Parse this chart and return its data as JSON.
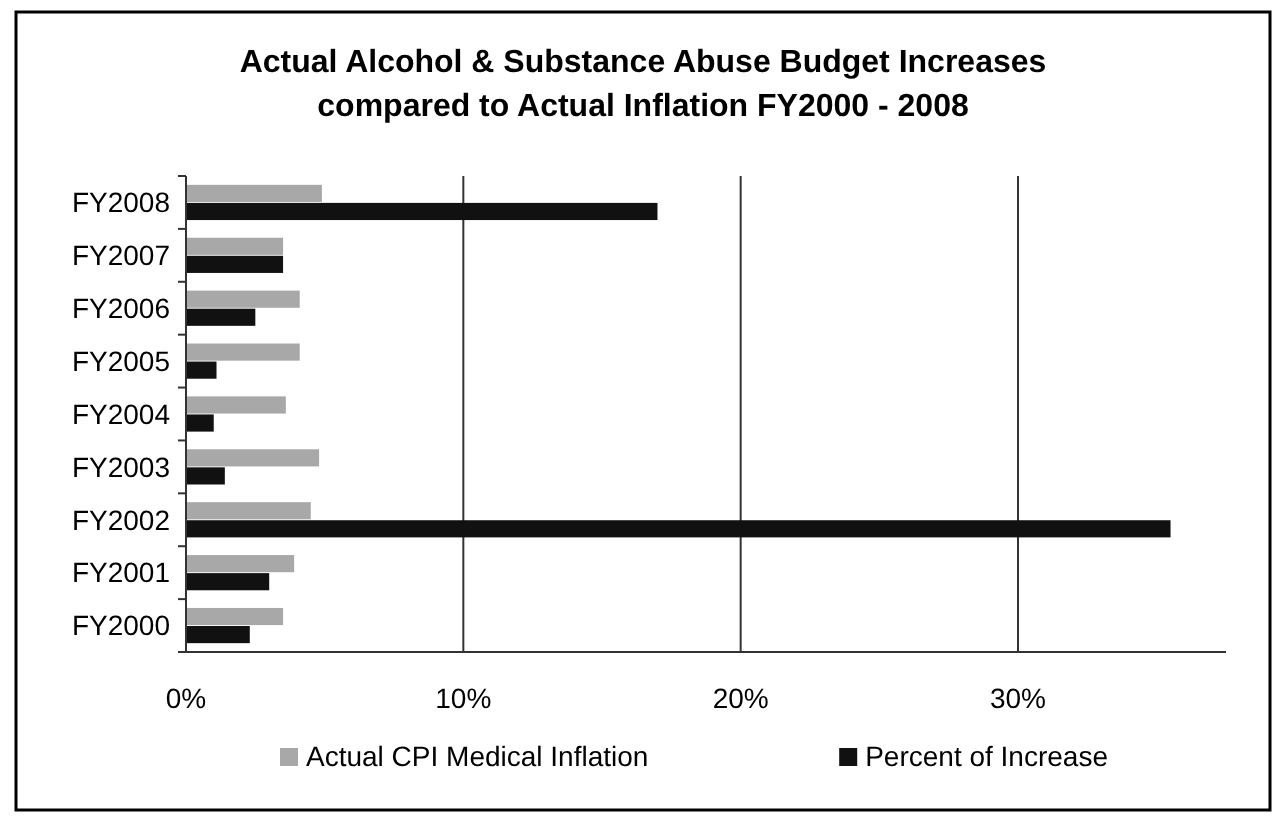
{
  "chart_data": {
    "type": "bar",
    "orientation": "horizontal",
    "title": "Actual Alcohol & Substance Abuse Budget Increases compared to Actual Inflation FY2000 - 2008",
    "categories": [
      "FY2008",
      "FY2007",
      "FY2006",
      "FY2005",
      "FY2004",
      "FY2003",
      "FY2002",
      "FY2001",
      "FY2000"
    ],
    "series": [
      {
        "name": "Actual CPI Medical Inflation",
        "color": "#a8a8a8",
        "values": [
          4.9,
          3.5,
          4.1,
          4.1,
          3.6,
          4.8,
          4.5,
          3.9,
          3.5
        ]
      },
      {
        "name": "Percent of Increase",
        "color": "#111111",
        "values": [
          17.0,
          3.5,
          2.5,
          1.1,
          1.0,
          1.4,
          35.5,
          3.0,
          2.3
        ]
      }
    ],
    "xlim": [
      0,
      37.5
    ],
    "xticks": [
      {
        "value": 0,
        "label": "0%"
      },
      {
        "value": 10,
        "label": "10%"
      },
      {
        "value": 20,
        "label": "20%"
      },
      {
        "value": 30,
        "label": "30%"
      }
    ],
    "grid": "x",
    "legend": "bottom"
  }
}
